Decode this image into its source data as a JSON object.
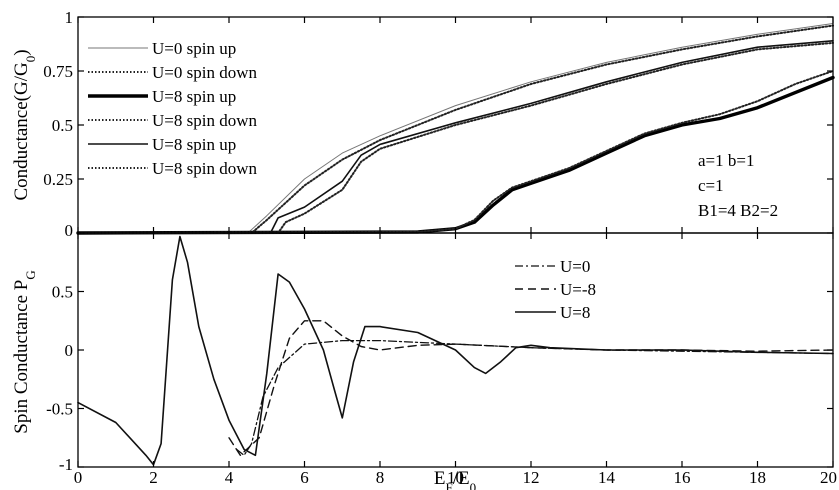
{
  "chart_data": [
    {
      "type": "line",
      "panel": "top",
      "ylabel": "Conductance(G/G",
      "ylabel_sub": "0",
      "ylabel_close": ")",
      "xlim": [
        0,
        20
      ],
      "ylim": [
        0,
        1
      ],
      "yticks": [
        0,
        0.25,
        0.5,
        0.75,
        1
      ],
      "ytick_labels": [
        "0",
        "0.25",
        "0.5",
        "0.75",
        "1"
      ],
      "legend_position": "top-left",
      "annotation": [
        "a=1 b=1",
        "c=1",
        "B1=4 B2=2"
      ],
      "series": [
        {
          "name": "U=0 spin up",
          "style": "thin-solid",
          "color": "#777777",
          "x": [
            0,
            4.5,
            5,
            6,
            7,
            8,
            10,
            12,
            14,
            16,
            18,
            20
          ],
          "y": [
            0,
            0,
            0.08,
            0.25,
            0.37,
            0.45,
            0.59,
            0.7,
            0.79,
            0.86,
            0.92,
            0.97
          ]
        },
        {
          "name": "U=0 spin down",
          "style": "dotted",
          "color": "#222222",
          "x": [
            0,
            4.6,
            5,
            6,
            7,
            8,
            10,
            12,
            14,
            16,
            18,
            20
          ],
          "y": [
            0,
            0,
            0.06,
            0.22,
            0.34,
            0.43,
            0.57,
            0.69,
            0.78,
            0.85,
            0.91,
            0.96
          ]
        },
        {
          "name": "U=8 spin up",
          "style": "thick-solid",
          "color": "#000000",
          "x": [
            0,
            9,
            10,
            10.5,
            11,
            11.5,
            12,
            13,
            14,
            15,
            16,
            17,
            18,
            19,
            20
          ],
          "y": [
            0,
            0.005,
            0.02,
            0.05,
            0.13,
            0.2,
            0.23,
            0.29,
            0.37,
            0.45,
            0.5,
            0.53,
            0.58,
            0.65,
            0.72
          ]
        },
        {
          "name": "U=8 spin down",
          "style": "dotted",
          "color": "#222222",
          "x": [
            0,
            9,
            10,
            10.5,
            11,
            11.5,
            12,
            13,
            14,
            15,
            16,
            17,
            18,
            19,
            20
          ],
          "y": [
            0,
            0.005,
            0.02,
            0.06,
            0.15,
            0.21,
            0.24,
            0.3,
            0.38,
            0.46,
            0.51,
            0.55,
            0.61,
            0.69,
            0.75
          ]
        },
        {
          "name": "U=8 spin up",
          "style": "solid",
          "color": "#111111",
          "x": [
            0,
            5.1,
            5.3,
            6,
            7,
            7.5,
            8,
            10,
            12,
            14,
            16,
            18,
            20
          ],
          "y": [
            0,
            0,
            0.07,
            0.12,
            0.24,
            0.36,
            0.41,
            0.51,
            0.6,
            0.7,
            0.79,
            0.86,
            0.89
          ]
        },
        {
          "name": "U=8 spin down",
          "style": "dotted",
          "color": "#222222",
          "x": [
            0,
            5.3,
            5.5,
            6,
            7,
            7.5,
            8,
            10,
            12,
            14,
            16,
            18,
            20
          ],
          "y": [
            0,
            0,
            0.05,
            0.09,
            0.2,
            0.33,
            0.39,
            0.5,
            0.59,
            0.69,
            0.78,
            0.85,
            0.88
          ]
        }
      ]
    },
    {
      "type": "line",
      "panel": "bottom",
      "ylabel": "Spin Conductance P",
      "ylabel_sub": "G",
      "xlabel": "E",
      "xlabel_sub1": "F",
      "xlabel_mid": "/E",
      "xlabel_sub2": "0",
      "xlim": [
        0,
        20
      ],
      "ylim": [
        -1,
        1
      ],
      "xticks": [
        0,
        2,
        4,
        6,
        8,
        10,
        12,
        14,
        16,
        18,
        20
      ],
      "xtick_labels": [
        "0",
        "2",
        "4",
        "6",
        "8",
        "10",
        "12",
        "14",
        "16",
        "18",
        "20"
      ],
      "yticks": [
        -1,
        -0.5,
        0,
        0.5
      ],
      "ytick_labels": [
        "-1",
        "-0.5",
        "0",
        "0.5"
      ],
      "legend_position": "top-right",
      "series": [
        {
          "name": "U=0",
          "style": "dash-dot",
          "color": "#111111",
          "x": [
            4.2,
            4.4,
            4.6,
            4.9,
            5.3,
            6,
            7,
            8,
            10,
            12,
            14,
            16,
            18,
            20
          ],
          "y": [
            -0.85,
            -0.9,
            -0.8,
            -0.4,
            -0.15,
            0.05,
            0.08,
            0.08,
            0.05,
            0.02,
            0,
            -0.01,
            -0.02,
            -0.03
          ]
        },
        {
          "name": "U=-8",
          "style": "dashed",
          "color": "#111111",
          "x": [
            4.0,
            4.3,
            4.8,
            5.2,
            5.6,
            6,
            6.5,
            7,
            7.5,
            8,
            9,
            10,
            12,
            14,
            16,
            18,
            20
          ],
          "y": [
            -0.75,
            -0.9,
            -0.75,
            -0.3,
            0.1,
            0.25,
            0.25,
            0.12,
            0.03,
            0,
            0.04,
            0.05,
            0.02,
            0,
            0,
            -0.01,
            0
          ]
        },
        {
          "name": "U=8",
          "style": "solid",
          "color": "#111111",
          "x": [
            0,
            1,
            1.8,
            2.0,
            2.2,
            2.5,
            2.7,
            2.9,
            3.2,
            3.6,
            4.0,
            4.4,
            4.7,
            5.0,
            5.3,
            5.6,
            6,
            6.5,
            6.8,
            7.0,
            7.3,
            7.6,
            8,
            9,
            10,
            10.5,
            10.8,
            11.2,
            11.6,
            12,
            12.5,
            14,
            16,
            18,
            20
          ],
          "y": [
            -0.45,
            -0.62,
            -0.9,
            -0.98,
            -0.8,
            0.6,
            0.97,
            0.75,
            0.2,
            -0.25,
            -0.6,
            -0.85,
            -0.9,
            -0.2,
            0.65,
            0.58,
            0.35,
            0,
            -0.35,
            -0.58,
            -0.1,
            0.2,
            0.2,
            0.15,
            0,
            -0.15,
            -0.2,
            -0.1,
            0.02,
            0.04,
            0.02,
            0,
            0,
            -0.02,
            -0.03
          ]
        }
      ]
    }
  ]
}
